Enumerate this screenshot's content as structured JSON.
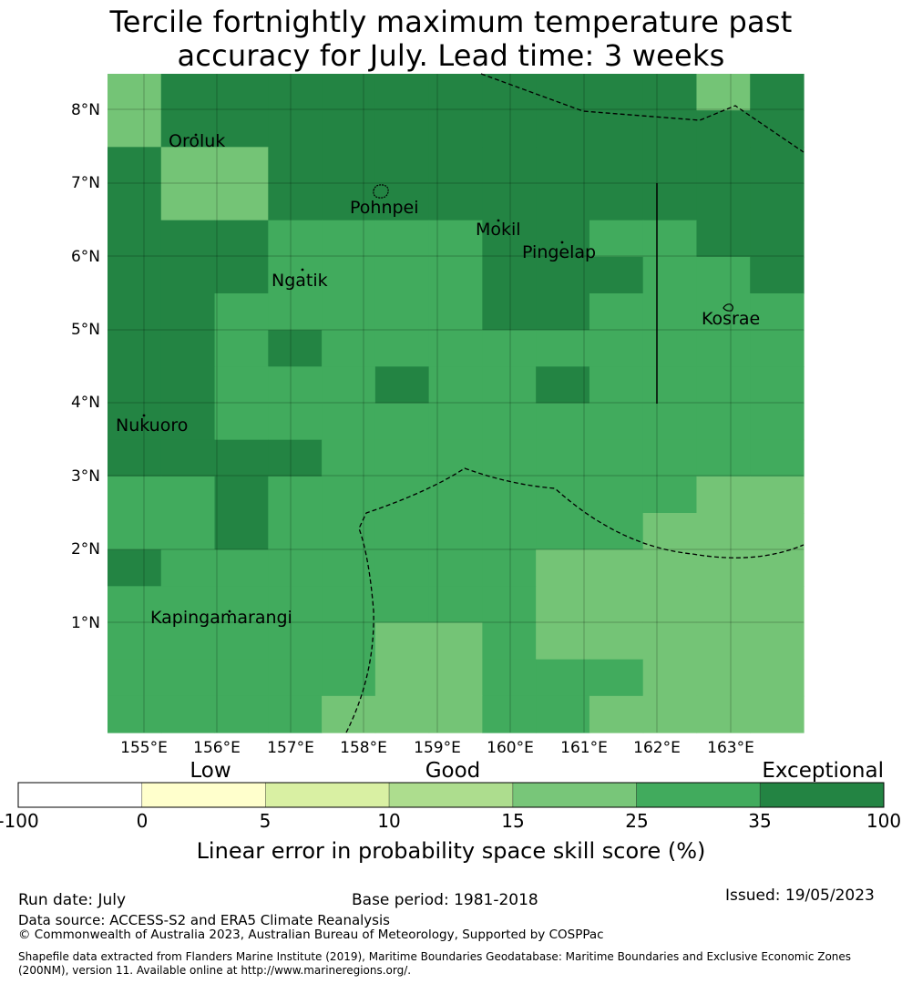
{
  "title": {
    "line1": "Tercile fortnightly maximum temperature past",
    "line2": "accuracy for July. Lead time: 3 weeks"
  },
  "map": {
    "lon_ticks": [
      "155°E",
      "156°E",
      "157°E",
      "158°E",
      "159°E",
      "160°E",
      "161°E",
      "162°E",
      "163°E"
    ],
    "lat_ticks": [
      "8°N",
      "7°N",
      "6°N",
      "5°N",
      "4°N",
      "3°N",
      "2°N",
      "1°N"
    ],
    "places": [
      "Oroluk",
      "Pohnpei",
      "Mokil",
      "Pingelap",
      "Ngatik",
      "Kosrae",
      "Nukuoro",
      "Kapingamarangi"
    ],
    "grid_colors": {
      "1": "#74c476",
      "2": "#41ab5d",
      "3": "#238443"
    },
    "grid_cols": [
      "1",
      "3",
      "3",
      "3",
      "3",
      "3",
      "3",
      "3",
      "3",
      "3",
      "3",
      "1",
      "3"
    ],
    "grid_note_rows": [
      "1333333333313",
      "1333333333333",
      "3113333333333",
      "3113333333333",
      "3332222332233",
      "3332222333223",
      "3322222332222",
      "3323222222222",
      "3322232232222",
      "3322222222222",
      "3333222222222",
      "2232222222211",
      "2232222222111",
      "3222222211111",
      "2222222211111",
      "2222211211111",
      "2222211222111",
      "2222111221111"
    ]
  },
  "colorbar": {
    "categories": [
      "Low",
      "Good",
      "Exceptional"
    ],
    "ticks": [
      "-100",
      "0",
      "5",
      "10",
      "15",
      "25",
      "35",
      "100"
    ],
    "colors": [
      "#ffffff",
      "#ffffcc",
      "#d9f0a3",
      "#addd8e",
      "#78c679",
      "#41ab5d",
      "#238443"
    ],
    "label": "Linear error in probability space skill score (%)"
  },
  "footer": {
    "run_date": "Run date: July",
    "base_period": "Base period: 1981-2018",
    "issued": "Issued: 19/05/2023",
    "data_source": "Data source: ACCESS-S2 and ERA5 Climate Reanalysis",
    "copyright": "© Commonwealth of Australia 2023, Australian Bureau of Meteorology, Supported by COSPPac",
    "shapefile": "Shapefile data extracted from Flanders Marine Institute (2019), Maritime Boundaries Geodatabase: Maritime Boundaries and Exclusive Economic Zones (200NM), version 11. Available online at http://www.marineregions.org/."
  }
}
